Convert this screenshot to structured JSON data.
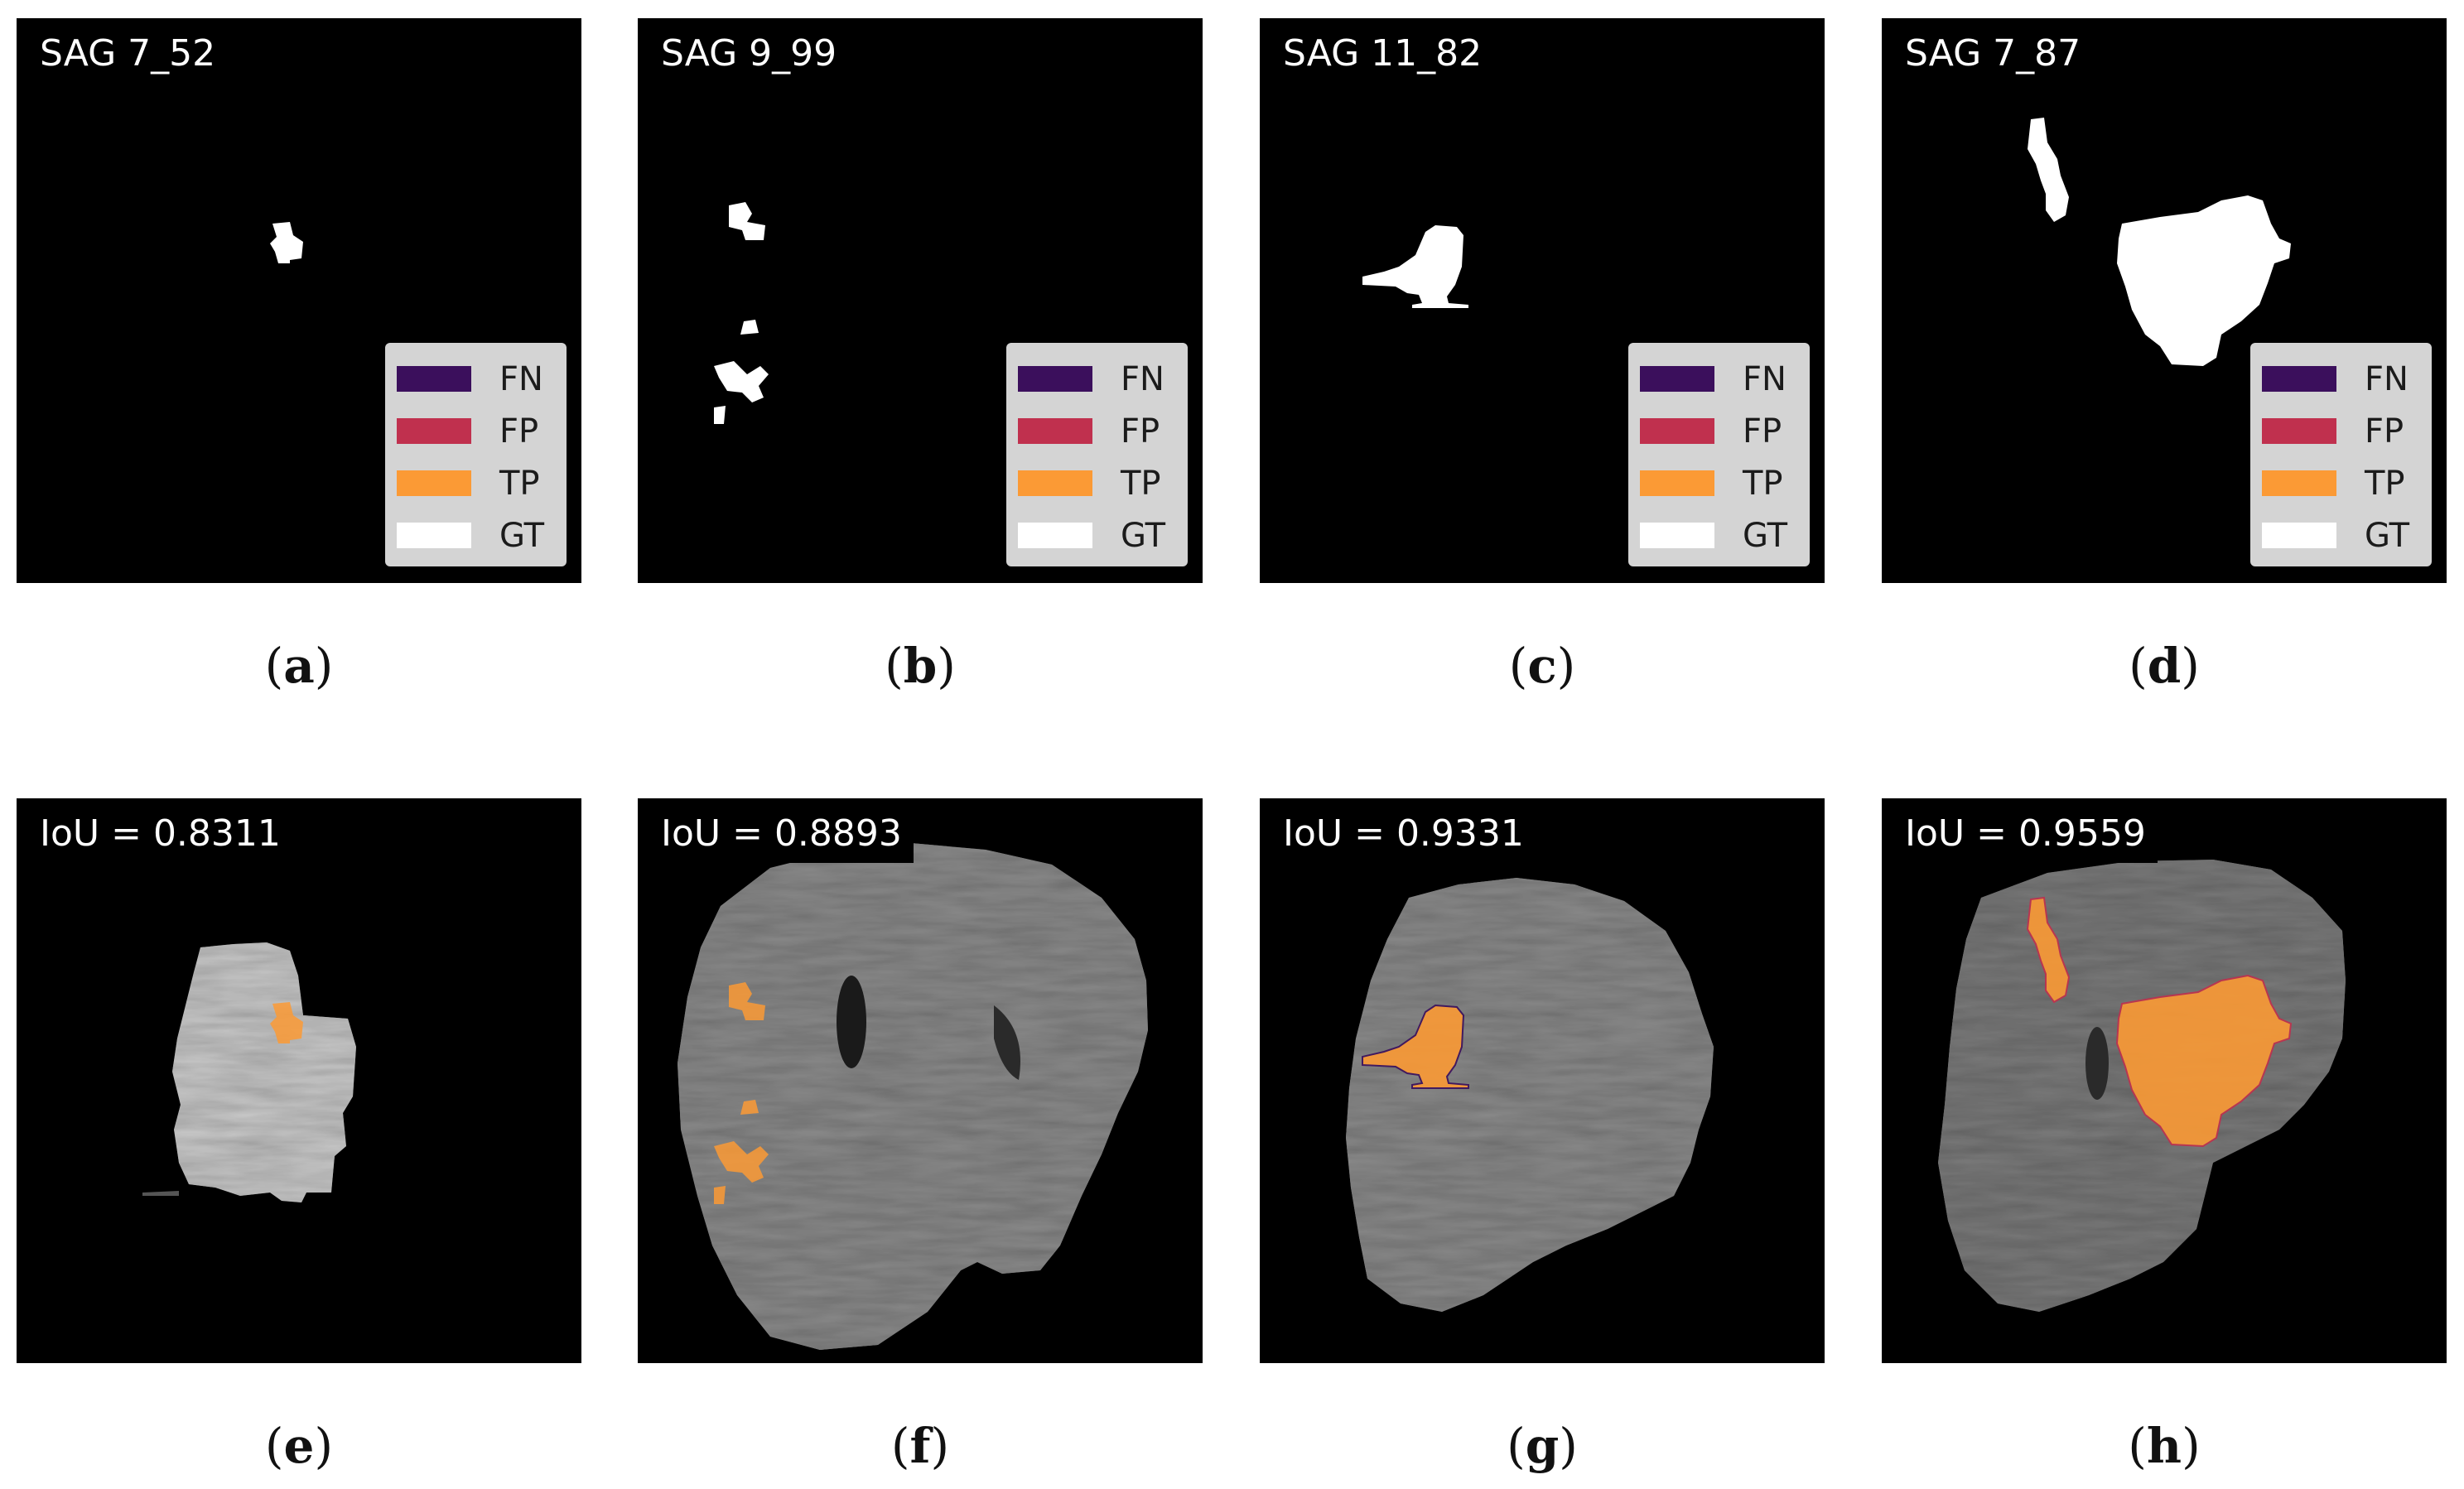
{
  "legend": [
    {
      "label": "FN",
      "color": "#3b0f5c"
    },
    {
      "label": "FP",
      "color": "#c0304e"
    },
    {
      "label": "TP",
      "color": "#fb9a35"
    },
    {
      "label": "GT",
      "color": "#ffffff"
    }
  ],
  "top_panels": [
    {
      "title": "SAG 7_52",
      "caption_letter": "a"
    },
    {
      "title": "SAG 9_99",
      "caption_letter": "b"
    },
    {
      "title": "SAG 11_82",
      "caption_letter": "c"
    },
    {
      "title": "SAG 7_87",
      "caption_letter": "d"
    }
  ],
  "bottom_panels": [
    {
      "title": "IoU = 0.8311",
      "caption_letter": "e"
    },
    {
      "title": "IoU = 0.8893",
      "caption_letter": "f"
    },
    {
      "title": "IoU = 0.9331",
      "caption_letter": "g"
    },
    {
      "title": "IoU = 0.9559",
      "caption_letter": "h"
    }
  ],
  "colors": {
    "background": "#000000",
    "ground_truth": "#ffffff",
    "true_positive": "#fb9a35",
    "false_positive": "#c0304e",
    "false_negative": "#3b0f5c",
    "mri_tissue": "#8a8a8a"
  }
}
